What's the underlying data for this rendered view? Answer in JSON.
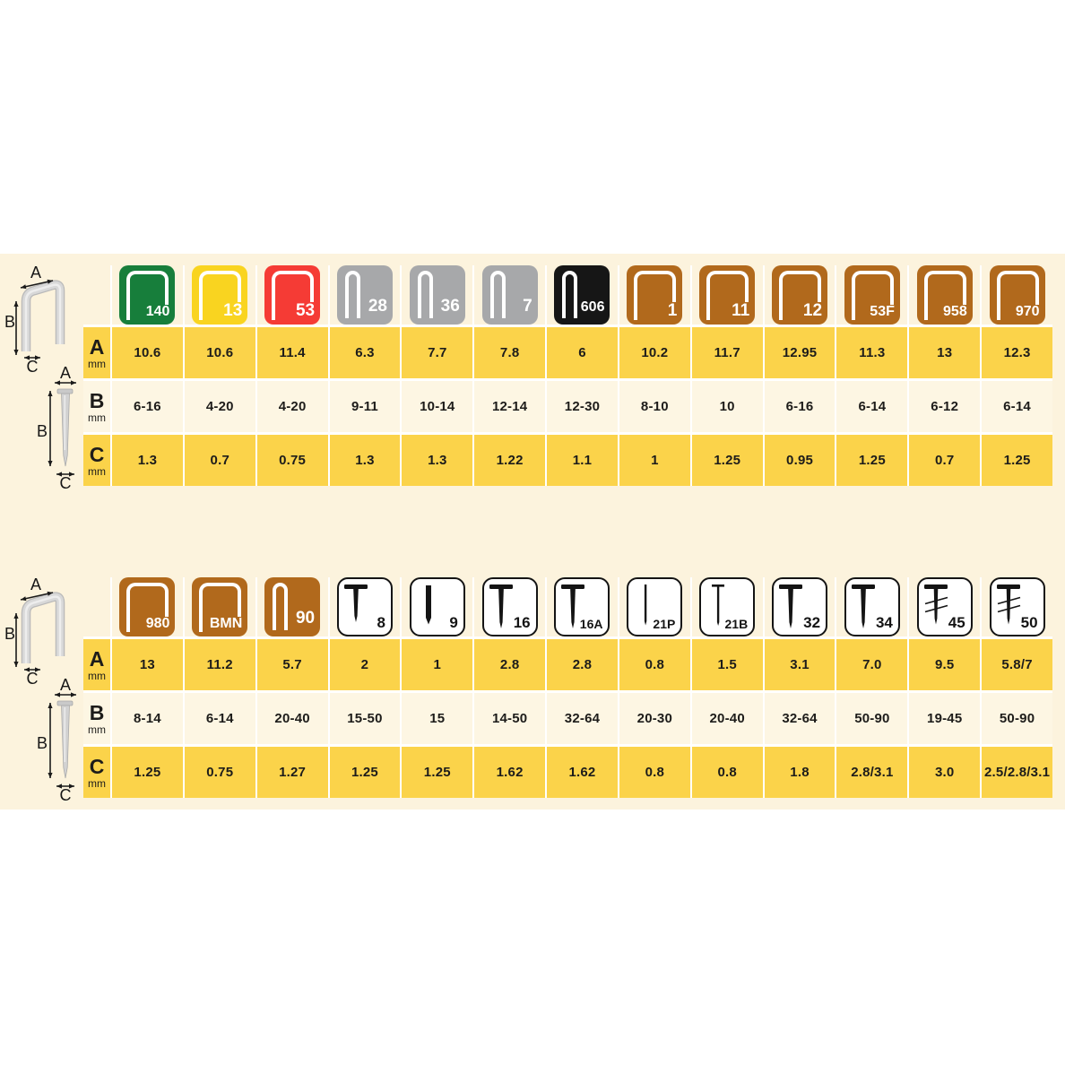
{
  "colors": {
    "band_background": "#fcf3dd",
    "row_yellow": "#fbd34a",
    "row_cream": "#fdf6e3",
    "grid_gap": "#ffffff",
    "text": "#1d1c1a",
    "icon_green": "#177e3b",
    "icon_yellow": "#f9d420",
    "icon_red": "#f53b35",
    "icon_gray": "#a7a8aa",
    "icon_black": "#161616",
    "icon_brown": "#b1691c",
    "nail_border": "#141414"
  },
  "diagram": {
    "a": "A",
    "b": "B",
    "c": "C"
  },
  "chart_data": [
    {
      "type": "table",
      "name": "staples-spec-table",
      "columns": [
        "140",
        "13",
        "53",
        "28",
        "36",
        "7",
        "606",
        "1",
        "11",
        "12",
        "53F",
        "958",
        "970"
      ],
      "rows": [
        {
          "label": "A",
          "unit": "mm",
          "style": "yellow",
          "values": [
            "10.6",
            "10.6",
            "11.4",
            "6.3",
            "7.7",
            "7.8",
            "6",
            "10.2",
            "11.7",
            "12.95",
            "11.3",
            "13",
            "12.3"
          ]
        },
        {
          "label": "B",
          "unit": "mm",
          "style": "cream",
          "values": [
            "6-16",
            "4-20",
            "4-20",
            "9-11",
            "10-14",
            "12-14",
            "12-30",
            "8-10",
            "10",
            "6-16",
            "6-14",
            "6-12",
            "6-14"
          ]
        },
        {
          "label": "C",
          "unit": "mm",
          "style": "yellow",
          "values": [
            "1.3",
            "0.7",
            "0.75",
            "1.3",
            "1.3",
            "1.22",
            "1.1",
            "1",
            "1.25",
            "0.95",
            "1.25",
            "0.7",
            "1.25"
          ]
        }
      ]
    },
    {
      "type": "table",
      "name": "staples-and-nails-spec-table",
      "columns": [
        "980",
        "BMN",
        "90",
        "8",
        "9",
        "16",
        "16A",
        "21P",
        "21B",
        "32",
        "34",
        "45",
        "50"
      ],
      "rows": [
        {
          "label": "A",
          "unit": "mm",
          "style": "yellow",
          "values": [
            "13",
            "11.2",
            "5.7",
            "2",
            "1",
            "2.8",
            "2.8",
            "0.8",
            "1.5",
            "3.1",
            "7.0",
            "9.5",
            "5.8/7"
          ]
        },
        {
          "label": "B",
          "unit": "mm",
          "style": "cream",
          "values": [
            "8-14",
            "6-14",
            "20-40",
            "15-50",
            "15",
            "14-50",
            "32-64",
            "20-30",
            "20-40",
            "32-64",
            "50-90",
            "19-45",
            "50-90"
          ]
        },
        {
          "label": "C",
          "unit": "mm",
          "style": "yellow",
          "values": [
            "1.25",
            "0.75",
            "1.27",
            "1.25",
            "1.25",
            "1.62",
            "1.62",
            "0.8",
            "0.8",
            "1.8",
            "2.8/3.1",
            "3.0",
            "2.5/2.8/3.1"
          ]
        }
      ]
    }
  ],
  "icons": [
    [
      {
        "id": "140",
        "name": "staple-wide-icon",
        "color": "#177e3b"
      },
      {
        "id": "13",
        "name": "staple-wide-icon",
        "color": "#f9d420"
      },
      {
        "id": "53",
        "name": "staple-wide-icon",
        "color": "#f53b35"
      },
      {
        "id": "28",
        "name": "staple-narrow-icon",
        "color": "#a7a8aa"
      },
      {
        "id": "36",
        "name": "staple-narrow-icon",
        "color": "#a7a8aa"
      },
      {
        "id": "7",
        "name": "staple-narrow-icon",
        "color": "#a7a8aa"
      },
      {
        "id": "606",
        "name": "staple-narrow-icon",
        "color": "#161616"
      },
      {
        "id": "1",
        "name": "staple-wide-icon",
        "color": "#b1691c"
      },
      {
        "id": "11",
        "name": "staple-wide-icon",
        "color": "#b1691c"
      },
      {
        "id": "12",
        "name": "staple-wide-icon",
        "color": "#b1691c"
      },
      {
        "id": "53F",
        "name": "staple-wide-icon",
        "color": "#b1691c"
      },
      {
        "id": "958",
        "name": "staple-wide-icon",
        "color": "#b1691c"
      },
      {
        "id": "970",
        "name": "staple-wide-icon",
        "color": "#b1691c"
      }
    ],
    [
      {
        "id": "980",
        "name": "staple-wide-icon",
        "color": "#b1691c"
      },
      {
        "id": "BMN",
        "name": "staple-wide-icon",
        "color": "#b1691c"
      },
      {
        "id": "90",
        "name": "staple-narrow-icon",
        "color": "#b1691c"
      },
      {
        "id": "8",
        "name": "t-nail-icon"
      },
      {
        "id": "9",
        "name": "pin-nail-icon"
      },
      {
        "id": "16",
        "name": "t-nail-icon"
      },
      {
        "id": "16A",
        "name": "t-nail-icon"
      },
      {
        "id": "21P",
        "name": "thin-pin-nail-icon"
      },
      {
        "id": "21B",
        "name": "brad-nail-icon"
      },
      {
        "id": "32",
        "name": "t-nail-icon"
      },
      {
        "id": "34",
        "name": "t-nail-icon"
      },
      {
        "id": "45",
        "name": "screw-nail-icon"
      },
      {
        "id": "50",
        "name": "screw-nail-icon"
      }
    ]
  ]
}
